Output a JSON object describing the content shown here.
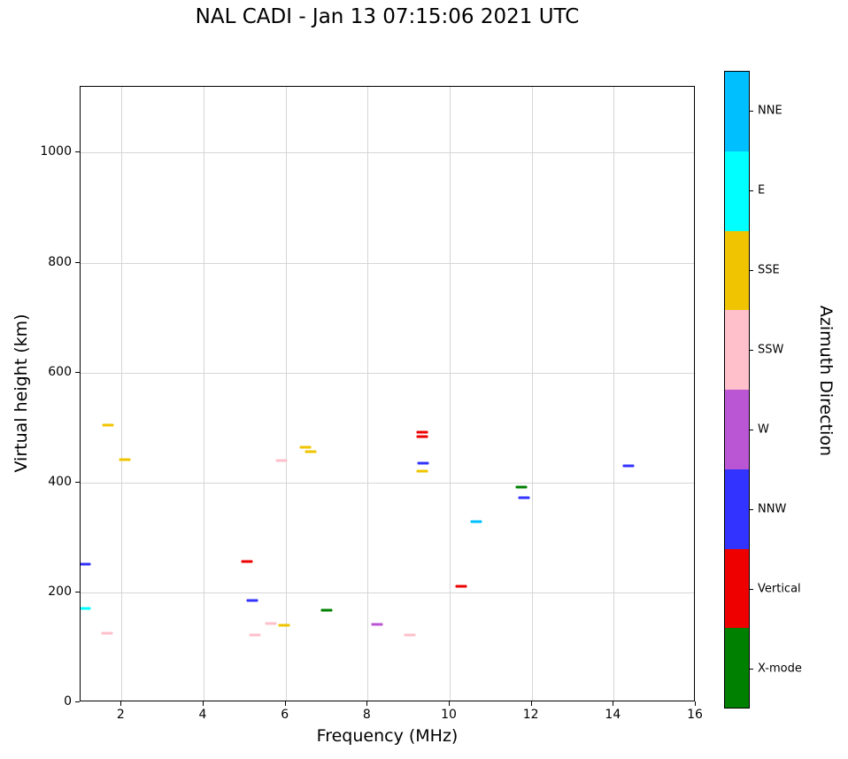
{
  "chart_data": {
    "type": "scatter",
    "title": "NAL CADI - Jan 13 07:15:06 2021 UTC",
    "xlabel": "Frequency (MHz)",
    "ylabel": "Virtual height (km)",
    "xlim": [
      1,
      16
    ],
    "ylim": [
      0,
      1120
    ],
    "xticks": [
      2,
      4,
      6,
      8,
      10,
      12,
      14,
      16
    ],
    "yticks": [
      0,
      200,
      400,
      600,
      800,
      1000
    ],
    "grid": true,
    "marker": "horizontal dash",
    "colorbar": {
      "label": "Azimuth Direction",
      "categories": [
        {
          "label": "NNE",
          "color": "#00BFFF"
        },
        {
          "label": "E",
          "color": "#00FFFF"
        },
        {
          "label": "SSE",
          "color": "#F0C400"
        },
        {
          "label": "SSW",
          "color": "#FFC0CB"
        },
        {
          "label": "W",
          "color": "#BA55D3"
        },
        {
          "label": "NNW",
          "color": "#3333FF"
        },
        {
          "label": "Vertical",
          "color": "#EE0000"
        },
        {
          "label": "X-mode",
          "color": "#008000"
        }
      ]
    },
    "series": [
      {
        "name": "NNE",
        "color": "#00BFFF",
        "points": [
          [
            10.65,
            329
          ]
        ]
      },
      {
        "name": "E",
        "color": "#00FFFF",
        "points": [
          [
            1.1,
            171
          ]
        ]
      },
      {
        "name": "SSE",
        "color": "#F0C400",
        "points": [
          [
            1.67,
            504
          ],
          [
            2.08,
            442
          ],
          [
            5.96,
            140
          ],
          [
            6.48,
            464
          ],
          [
            6.61,
            456
          ],
          [
            9.33,
            420
          ]
        ]
      },
      {
        "name": "SSW",
        "color": "#FFC0CB",
        "points": [
          [
            1.65,
            126
          ],
          [
            5.25,
            122
          ],
          [
            5.64,
            143
          ],
          [
            5.9,
            440
          ],
          [
            9.03,
            122
          ]
        ]
      },
      {
        "name": "W",
        "color": "#BA55D3",
        "points": [
          [
            8.23,
            142
          ]
        ]
      },
      {
        "name": "NNW",
        "color": "#3333FF",
        "points": [
          [
            1.1,
            251
          ],
          [
            5.18,
            185
          ],
          [
            9.35,
            435
          ],
          [
            11.81,
            372
          ],
          [
            14.35,
            430
          ]
        ]
      },
      {
        "name": "Vertical",
        "color": "#EE0000",
        "points": [
          [
            5.05,
            256
          ],
          [
            9.33,
            492
          ],
          [
            9.33,
            484
          ],
          [
            10.28,
            211
          ]
        ]
      },
      {
        "name": "X-mode",
        "color": "#008000",
        "points": [
          [
            7.0,
            168
          ],
          [
            11.75,
            392
          ]
        ]
      }
    ]
  }
}
